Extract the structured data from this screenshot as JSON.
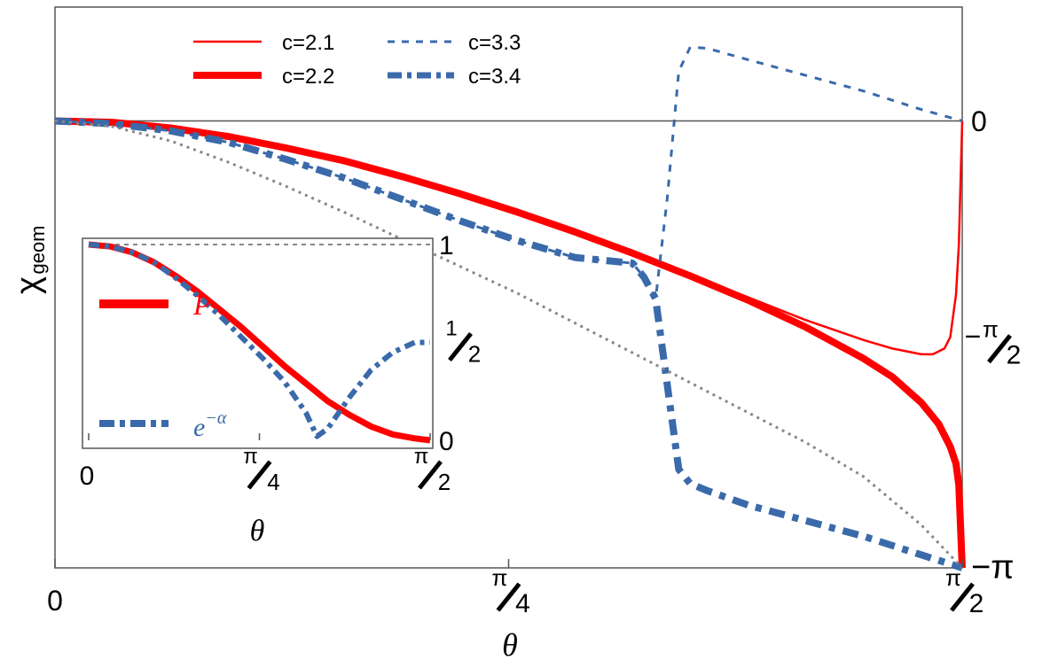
{
  "chart_data": [
    {
      "type": "line",
      "xlabel": "θ",
      "ylabel": "χgeom",
      "ylabel_main": "χ",
      "ylabel_sub": "geom",
      "xlim": [
        0,
        1.5708
      ],
      "ylim": [
        -3.1416,
        0.8
      ],
      "x_ticks": [
        {
          "value": 0,
          "label": "0"
        },
        {
          "value": 0.7854,
          "num": "π",
          "den": "4"
        },
        {
          "value": 1.5708,
          "num": "π",
          "den": "2"
        }
      ],
      "y_ticks": [
        {
          "value": 0,
          "label": "0"
        },
        {
          "value": -1.5708,
          "prefix": "−",
          "num": "π",
          "den": "2"
        },
        {
          "value": -3.1416,
          "label": "−π"
        }
      ],
      "zero_line": true,
      "legend_position": "top",
      "series": [
        {
          "name": "c=2.1",
          "color": "#ff0000",
          "style": "solid",
          "weight": "thin",
          "x": [
            0,
            0.1,
            0.2,
            0.3,
            0.4,
            0.5,
            0.6,
            0.7,
            0.8,
            0.9,
            1.0,
            1.1,
            1.2,
            1.3,
            1.4,
            1.45,
            1.5,
            1.52,
            1.54,
            1.55,
            1.56,
            1.565,
            1.5708
          ],
          "y": [
            0,
            -0.01,
            -0.05,
            -0.11,
            -0.19,
            -0.28,
            -0.39,
            -0.51,
            -0.64,
            -0.78,
            -0.93,
            -1.08,
            -1.24,
            -1.4,
            -1.54,
            -1.6,
            -1.64,
            -1.64,
            -1.6,
            -1.52,
            -1.22,
            -0.87,
            0
          ]
        },
        {
          "name": "c=2.2",
          "color": "#ff0000",
          "style": "solid",
          "weight": "thick",
          "x": [
            0,
            0.1,
            0.2,
            0.3,
            0.4,
            0.5,
            0.6,
            0.7,
            0.8,
            0.9,
            1.0,
            1.1,
            1.2,
            1.3,
            1.4,
            1.45,
            1.5,
            1.53,
            1.55,
            1.56,
            1.565,
            1.5708
          ],
          "y": [
            0,
            -0.01,
            -0.05,
            -0.11,
            -0.19,
            -0.28,
            -0.39,
            -0.51,
            -0.64,
            -0.78,
            -0.93,
            -1.09,
            -1.26,
            -1.45,
            -1.67,
            -1.8,
            -1.98,
            -2.13,
            -2.29,
            -2.41,
            -2.56,
            -3.1416
          ]
        },
        {
          "name": "c=3.3",
          "color": "#3a6aaa",
          "style": "dashed",
          "weight": "thin",
          "x": [
            0,
            0.1,
            0.2,
            0.3,
            0.4,
            0.5,
            0.6,
            0.7,
            0.8,
            0.9,
            1.0,
            1.02,
            1.04,
            1.06,
            1.08,
            1.1,
            1.13,
            1.2,
            1.3,
            1.4,
            1.5,
            1.5708
          ],
          "y": [
            0,
            -0.02,
            -0.07,
            -0.15,
            -0.27,
            -0.4,
            -0.55,
            -0.7,
            -0.84,
            -0.96,
            -1.0,
            -1.1,
            -1.25,
            -0.55,
            0.35,
            0.52,
            0.51,
            0.43,
            0.32,
            0.21,
            0.08,
            0
          ]
        },
        {
          "name": "c=3.4",
          "color": "#3a6aaa",
          "style": "dashdot",
          "weight": "thick",
          "x": [
            0,
            0.1,
            0.2,
            0.3,
            0.4,
            0.5,
            0.6,
            0.7,
            0.8,
            0.9,
            1.0,
            1.02,
            1.04,
            1.06,
            1.08,
            1.1,
            1.13,
            1.2,
            1.3,
            1.4,
            1.5,
            1.5708
          ],
          "y": [
            0,
            -0.02,
            -0.07,
            -0.15,
            -0.27,
            -0.4,
            -0.55,
            -0.7,
            -0.84,
            -0.96,
            -1.0,
            -1.1,
            -1.25,
            -1.85,
            -2.45,
            -2.55,
            -2.6,
            -2.7,
            -2.81,
            -2.92,
            -3.05,
            -3.1416
          ]
        },
        {
          "name": "",
          "color": "#888888",
          "style": "dotted",
          "weight": "thin",
          "x": [
            0,
            0.1,
            0.2,
            0.3,
            0.4,
            0.5,
            0.6,
            0.7,
            0.8,
            0.9,
            1.0,
            1.1,
            1.2,
            1.3,
            1.4,
            1.5,
            1.5708
          ],
          "y": [
            0,
            -0.04,
            -0.14,
            -0.29,
            -0.46,
            -0.64,
            -0.83,
            -1.02,
            -1.21,
            -1.42,
            -1.63,
            -1.84,
            -2.05,
            -2.26,
            -2.5,
            -2.84,
            -3.1416
          ]
        }
      ]
    },
    {
      "type": "line",
      "xlabel": "θ",
      "xlim": [
        0,
        1.5708
      ],
      "ylim": [
        0,
        1
      ],
      "x_ticks": [
        {
          "value": 0,
          "label": "0"
        },
        {
          "value": 0.7854,
          "num": "π",
          "den": "4"
        },
        {
          "value": 1.5708,
          "num": "π",
          "den": "2"
        }
      ],
      "y_ticks": [
        {
          "value": 1,
          "label": "1"
        },
        {
          "value": 0.5,
          "num": "1",
          "den": "2"
        },
        {
          "value": 0,
          "label": "0"
        }
      ],
      "reference_line": 1,
      "legend_position": "left",
      "series": [
        {
          "name": "P",
          "color": "#ff0000",
          "style": "solid",
          "weight": "thick",
          "x": [
            0,
            0.1,
            0.2,
            0.3,
            0.4,
            0.5,
            0.6,
            0.7,
            0.8,
            0.9,
            1.0,
            1.1,
            1.2,
            1.3,
            1.4,
            1.5,
            1.5708
          ],
          "y": [
            1.0,
            0.99,
            0.96,
            0.91,
            0.84,
            0.76,
            0.67,
            0.58,
            0.48,
            0.38,
            0.29,
            0.2,
            0.13,
            0.07,
            0.03,
            0.01,
            0.0
          ]
        },
        {
          "name": "e",
          "name_sup": "−α",
          "color": "#3a6aaa",
          "style": "dashdot",
          "weight": "thick",
          "x": [
            0,
            0.1,
            0.2,
            0.3,
            0.4,
            0.5,
            0.6,
            0.7,
            0.8,
            0.9,
            1.0,
            1.05,
            1.1,
            1.2,
            1.3,
            1.4,
            1.5,
            1.5708
          ],
          "y": [
            1.0,
            0.99,
            0.96,
            0.91,
            0.83,
            0.74,
            0.64,
            0.53,
            0.42,
            0.3,
            0.14,
            0.02,
            0.06,
            0.22,
            0.36,
            0.45,
            0.5,
            0.5
          ]
        }
      ]
    }
  ]
}
